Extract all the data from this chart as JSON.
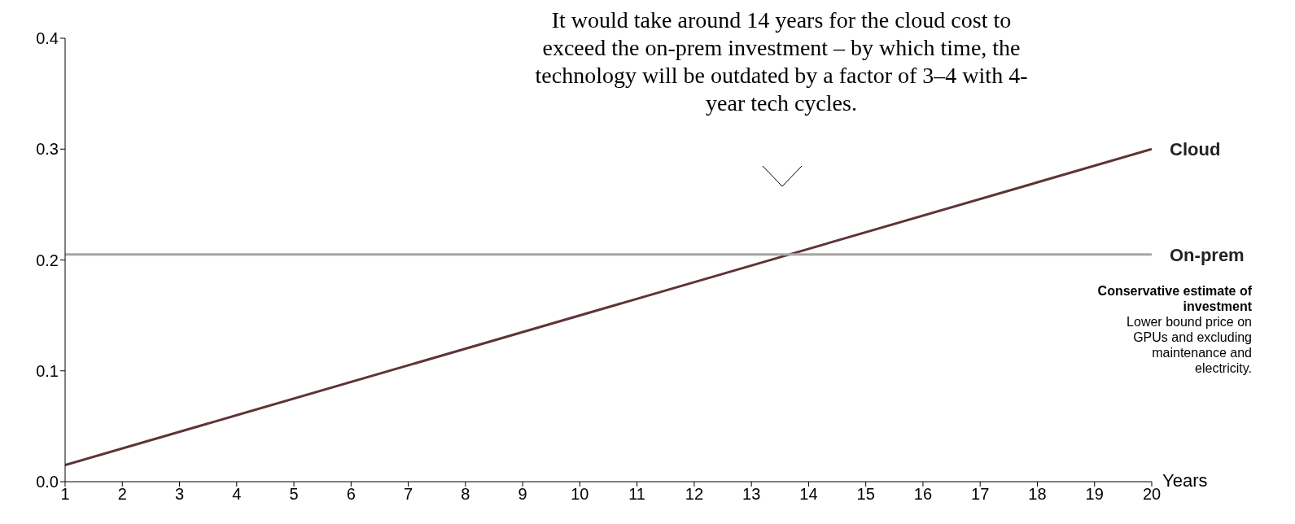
{
  "chart_data": {
    "type": "line",
    "xlabel": "Years",
    "x": [
      1,
      20
    ],
    "series": [
      {
        "name": "Cloud",
        "color": "#5e3436",
        "values": [
          0.015,
          0.3
        ]
      },
      {
        "name": "On-prem",
        "color": "#a6a6a6",
        "values": [
          0.205,
          0.205
        ]
      }
    ],
    "xlim": [
      1,
      20
    ],
    "xticks": [
      1,
      2,
      3,
      4,
      5,
      6,
      7,
      8,
      9,
      10,
      11,
      12,
      13,
      14,
      15,
      16,
      17,
      18,
      19,
      20
    ],
    "ylim": [
      0,
      0.4
    ],
    "yticks": [
      {
        "value": 0,
        "label": "0.0"
      },
      0.1,
      0.2,
      0.3,
      0.4
    ],
    "grid": false,
    "marker": "none",
    "line_style": "solid",
    "annotations": [
      "It would take around 14 years for the cloud cost to exceed the on-prem investment – by which time, the technology will be outdated by a factor of 3–4 with 4-year tech cycles.",
      "Conservative estimate of investment",
      "Lower bound price on GPUs and excluding maintenance and electricity."
    ]
  }
}
